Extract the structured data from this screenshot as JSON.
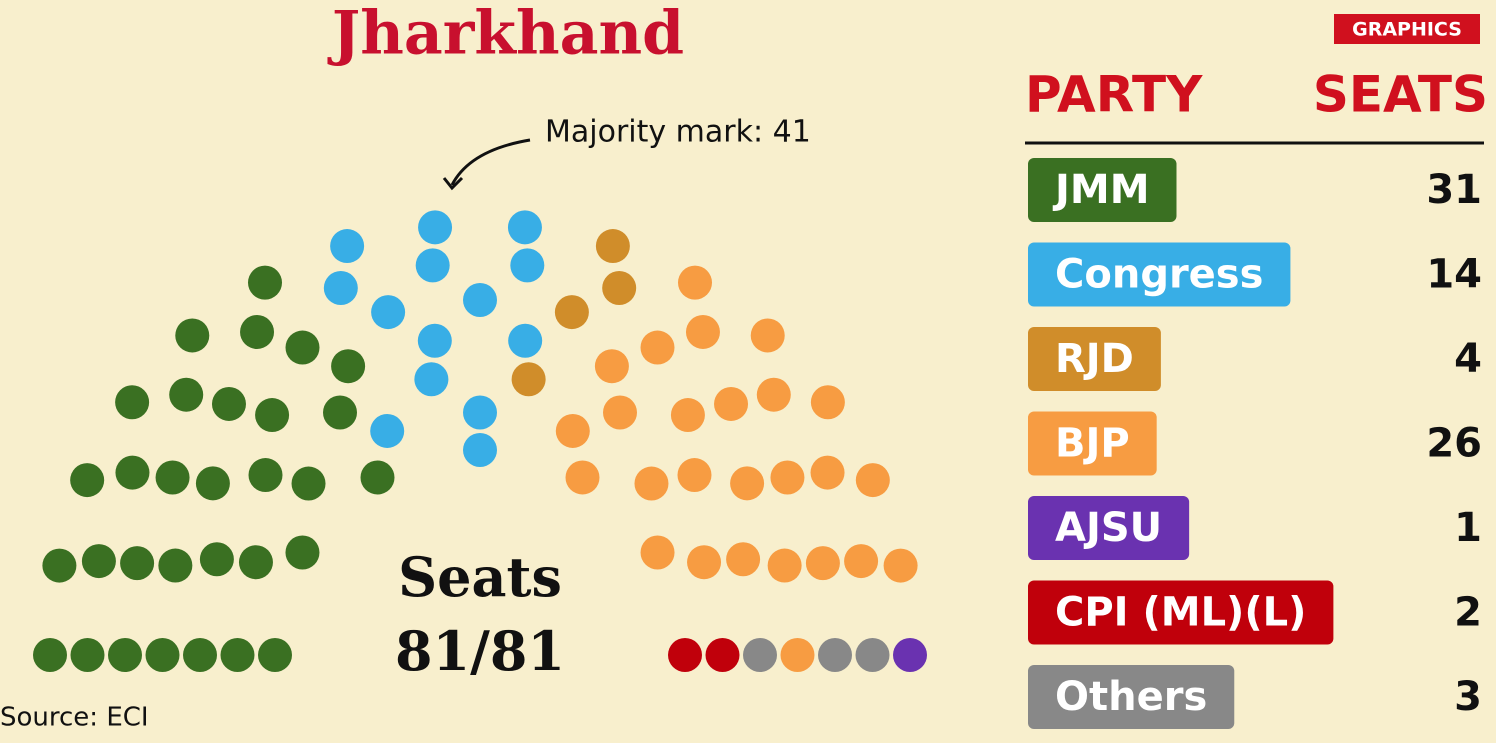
{
  "chart_data": {
    "type": "parliament",
    "title": "Jharkhand",
    "badge": "GRAPHICS",
    "annotation": "Majority mark: 41",
    "center_label": "Seats",
    "center_value": "81/81",
    "source": "Source: ECI",
    "table_headers": [
      "PARTY",
      "SEATS"
    ],
    "categories": [
      "JMM",
      "Congress",
      "RJD",
      "BJP",
      "AJSU",
      "CPI (ML)(L)",
      "Others"
    ],
    "values": [
      31,
      14,
      4,
      26,
      1,
      2,
      3
    ],
    "colors": [
      "#3a7022",
      "#38aee6",
      "#d08d2a",
      "#f79c42",
      "#6a32b0",
      "#c0000b",
      "#888888"
    ]
  }
}
